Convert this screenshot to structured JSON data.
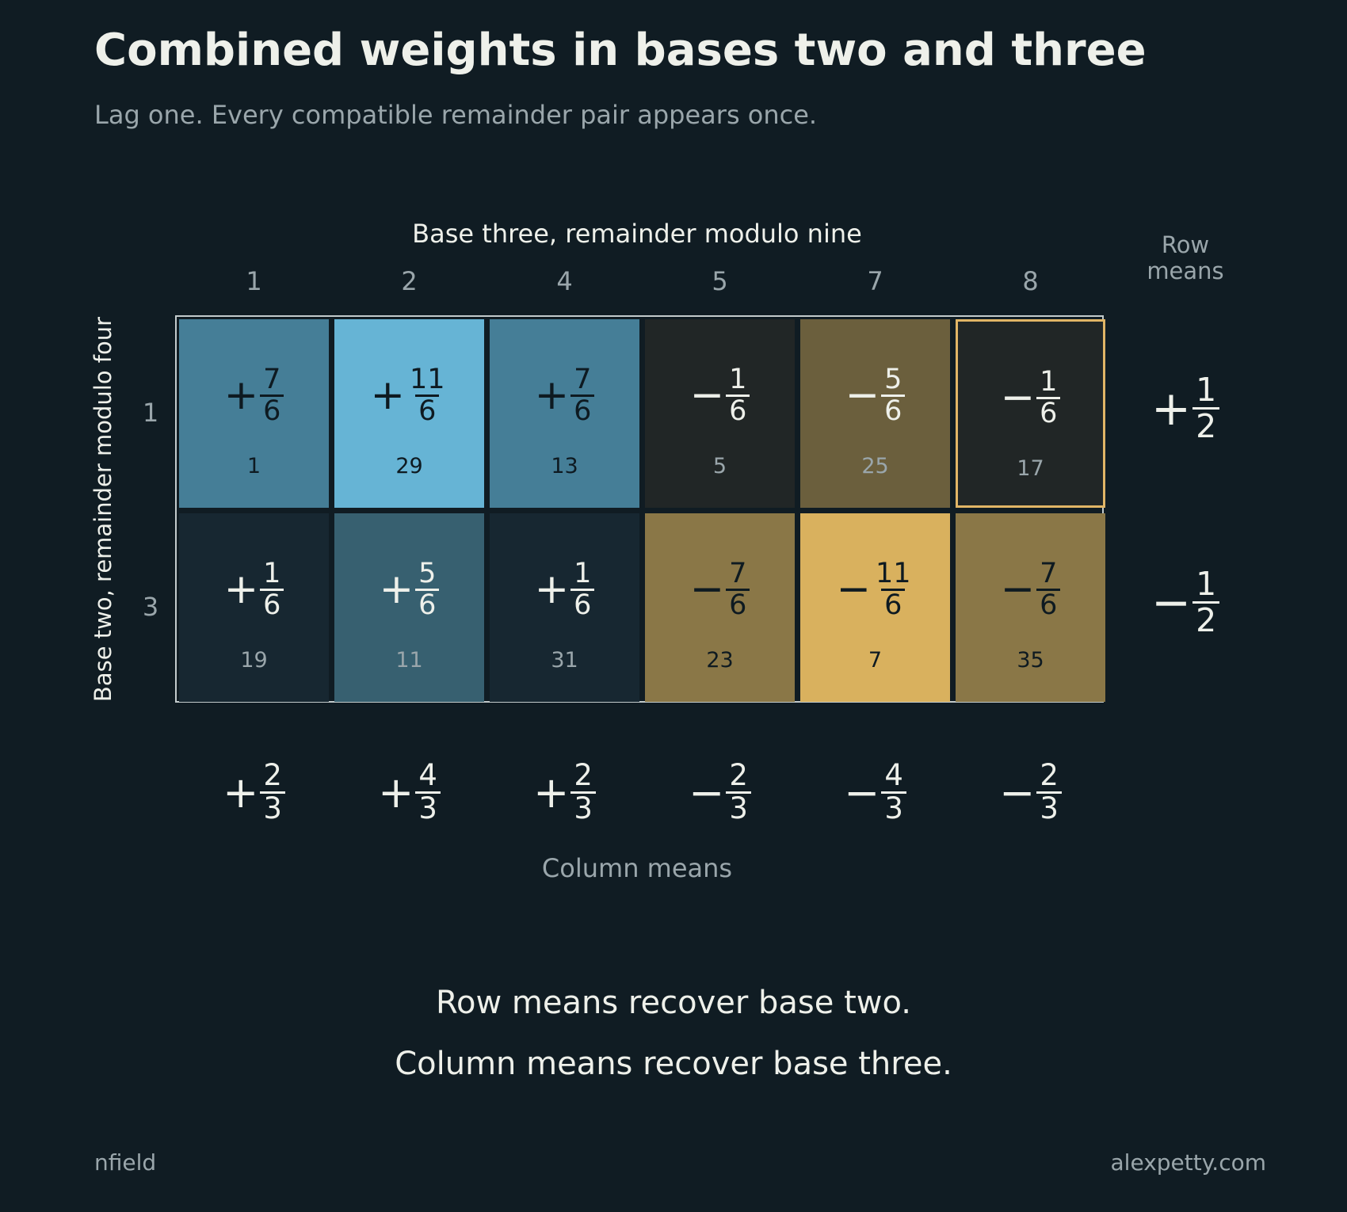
{
  "header": {
    "title": "Combined weights in bases two and three",
    "subtitle": "Lag one. Every compatible remainder pair appears once."
  },
  "axes": {
    "x_title": "Base three, remainder modulo nine",
    "y_title": "Base two, remainder modulo four",
    "row_means_title": [
      "Row",
      "means"
    ],
    "column_means_title": "Column means"
  },
  "columns": [
    "1",
    "2",
    "4",
    "5",
    "7",
    "8"
  ],
  "rows": [
    {
      "label": "1",
      "mean": {
        "sign": "+",
        "num": "1",
        "den": "2"
      },
      "cells": [
        {
          "sign": "+",
          "num": "7",
          "den": "6",
          "index": "1",
          "value": 1.1667,
          "fill": "#457e97",
          "text": "#0e1a21",
          "idx": "#0e1a21"
        },
        {
          "sign": "+",
          "num": "11",
          "den": "6",
          "index": "29",
          "value": 1.8333,
          "fill": "#66b4d5",
          "text": "#0e1a21",
          "idx": "#0e1a21"
        },
        {
          "sign": "+",
          "num": "7",
          "den": "6",
          "index": "13",
          "value": 1.1667,
          "fill": "#457e97",
          "text": "#0e1a21",
          "idx": "#0e1a21"
        },
        {
          "sign": "−",
          "num": "1",
          "den": "6",
          "index": "5",
          "value": -0.1667,
          "fill": "#212626",
          "text": "#eef0ea",
          "idx": "#9aa6ab"
        },
        {
          "sign": "−",
          "num": "5",
          "den": "6",
          "index": "25",
          "value": -0.8333,
          "fill": "#6b5f3d",
          "text": "#eef0ea",
          "idx": "#9aa6ab"
        },
        {
          "sign": "−",
          "num": "1",
          "den": "6",
          "index": "17",
          "value": -0.1667,
          "fill": "#212626",
          "text": "#eef0ea",
          "idx": "#9aa6ab",
          "highlight": true
        }
      ]
    },
    {
      "label": "3",
      "mean": {
        "sign": "−",
        "num": "1",
        "den": "2"
      },
      "cells": [
        {
          "sign": "+",
          "num": "1",
          "den": "6",
          "index": "19",
          "value": 0.1667,
          "fill": "#172731",
          "text": "#eef0ea",
          "idx": "#9aa6ab"
        },
        {
          "sign": "+",
          "num": "5",
          "den": "6",
          "index": "11",
          "value": 0.8333,
          "fill": "#376070",
          "text": "#eef0ea",
          "idx": "#9aa6ab"
        },
        {
          "sign": "+",
          "num": "1",
          "den": "6",
          "index": "31",
          "value": 0.1667,
          "fill": "#172731",
          "text": "#eef0ea",
          "idx": "#9aa6ab"
        },
        {
          "sign": "−",
          "num": "7",
          "den": "6",
          "index": "23",
          "value": -1.1667,
          "fill": "#8a7747",
          "text": "#0e1a21",
          "idx": "#0e1a21"
        },
        {
          "sign": "−",
          "num": "11",
          "den": "6",
          "index": "7",
          "value": -1.8333,
          "fill": "#d9b15e",
          "text": "#0e1a21",
          "idx": "#0e1a21"
        },
        {
          "sign": "−",
          "num": "7",
          "den": "6",
          "index": "35",
          "value": -1.1667,
          "fill": "#8a7747",
          "text": "#0e1a21",
          "idx": "#0e1a21"
        }
      ]
    }
  ],
  "column_means": [
    {
      "sign": "+",
      "num": "2",
      "den": "3"
    },
    {
      "sign": "+",
      "num": "4",
      "den": "3"
    },
    {
      "sign": "+",
      "num": "2",
      "den": "3"
    },
    {
      "sign": "−",
      "num": "2",
      "den": "3"
    },
    {
      "sign": "−",
      "num": "4",
      "den": "3"
    },
    {
      "sign": "−",
      "num": "2",
      "den": "3"
    }
  ],
  "captions": [
    "Row means recover base two.",
    "Column means recover base three."
  ],
  "footer": {
    "left": "nfield",
    "right": "alexpetty.com"
  },
  "colors": {
    "background": "#101c23",
    "highlight": "#e1b566"
  }
}
